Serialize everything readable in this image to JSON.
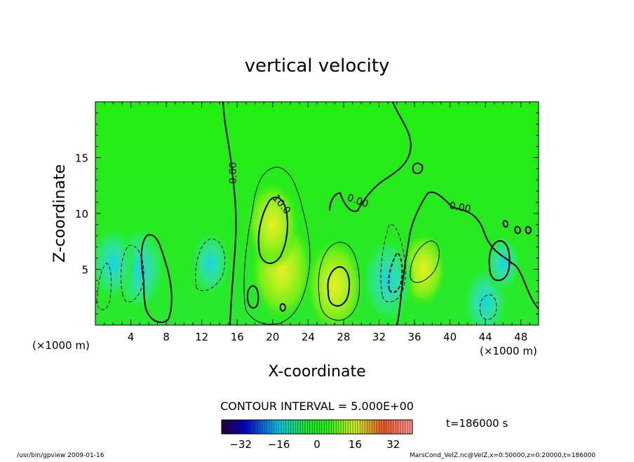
{
  "chart_data": {
    "type": "heatmap",
    "title": "vertical velocity",
    "xlabel": "X-coordinate",
    "ylabel": "Z-coordinate",
    "x_unit_label_left": "(×1000 m)",
    "x_unit_label_right": "(×1000 m)",
    "x_range": [
      0,
      50
    ],
    "y_range": [
      0,
      20
    ],
    "x_ticks": [
      "4",
      "8",
      "12",
      "16",
      "20",
      "24",
      "28",
      "32",
      "36",
      "40",
      "44",
      "48"
    ],
    "y_ticks": [
      "5",
      "10",
      "15"
    ],
    "contour_labels": [
      "0.00",
      "10.0",
      "0.00",
      "0.00"
    ],
    "contour_interval_text": "CONTOUR INTERVAL = 5.000E+00",
    "time_text": "t=186000 s",
    "colorbar": {
      "range": [
        -40,
        40
      ],
      "ticks": [
        "−32",
        "−16",
        "0",
        "16",
        "32"
      ],
      "tick_values": [
        -32,
        -16,
        0,
        16,
        32
      ]
    },
    "features": [
      {
        "x": 21,
        "y": 5,
        "value": 16
      },
      {
        "x": 20,
        "y": 9,
        "value": 12
      },
      {
        "x": 27,
        "y": 3.5,
        "value": 14
      },
      {
        "x": 37,
        "y": 5,
        "value": 9
      },
      {
        "x": 5,
        "y": 5,
        "value": -12
      },
      {
        "x": 2,
        "y": 5.5,
        "value": -9
      },
      {
        "x": 13,
        "y": 5.5,
        "value": -7
      },
      {
        "x": 33,
        "y": 4,
        "value": -12
      },
      {
        "x": 44,
        "y": 2,
        "value": -9
      },
      {
        "x": 46,
        "y": 5.5,
        "value": -5
      }
    ],
    "grid": false
  },
  "footer": {
    "left": "/usr/bin/gpview   2009-01-16",
    "right": "MarsCond_VelZ.nc@VelZ,x=0:50000,z=0:20000,t=186000"
  },
  "colors": {
    "background_field": "#22ee10",
    "positive_peak": "#e0f020",
    "negative_peak": "#20d8d0",
    "contour": "#000000"
  }
}
